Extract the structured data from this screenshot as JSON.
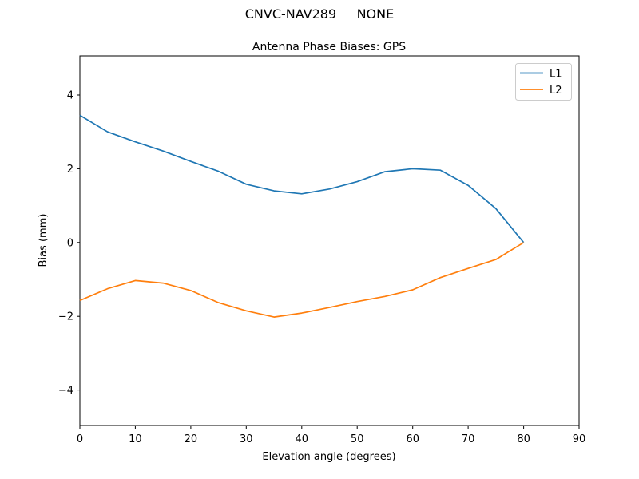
{
  "figure": {
    "suptitle": "CNVC-NAV289     NONE",
    "background": "#ffffff"
  },
  "chart_data": {
    "type": "line",
    "title": "Antenna Phase Biases: GPS",
    "xlabel": "Elevation angle (degrees)",
    "ylabel": "Bias (mm)",
    "xlim": [
      0,
      90
    ],
    "ylim": [
      -4.96,
      5.06
    ],
    "grid": false,
    "legend_position": "upper right",
    "x": [
      0,
      5,
      10,
      15,
      20,
      25,
      30,
      35,
      40,
      45,
      50,
      55,
      60,
      65,
      70,
      75,
      80
    ],
    "series": [
      {
        "name": "L1",
        "color": "#1f77b4",
        "values": [
          3.45,
          3.0,
          2.73,
          2.48,
          2.2,
          1.93,
          1.58,
          1.4,
          1.32,
          1.45,
          1.65,
          1.92,
          2.0,
          1.96,
          1.55,
          0.92,
          0.0
        ]
      },
      {
        "name": "L2",
        "color": "#ff7f0e",
        "values": [
          -1.57,
          -1.25,
          -1.03,
          -1.1,
          -1.3,
          -1.63,
          -1.85,
          -2.02,
          -1.91,
          -1.76,
          -1.6,
          -1.46,
          -1.28,
          -0.95,
          -0.7,
          -0.46,
          0.0
        ]
      }
    ],
    "xticks": {
      "values": [
        0,
        10,
        20,
        30,
        40,
        50,
        60,
        70,
        80,
        90
      ],
      "labels": [
        "0",
        "10",
        "20",
        "30",
        "40",
        "50",
        "60",
        "70",
        "80",
        "90"
      ]
    },
    "yticks": {
      "values": [
        -4,
        -2,
        0,
        2,
        4
      ],
      "labels": [
        "−4",
        "−2",
        "0",
        "2",
        "4"
      ]
    }
  }
}
